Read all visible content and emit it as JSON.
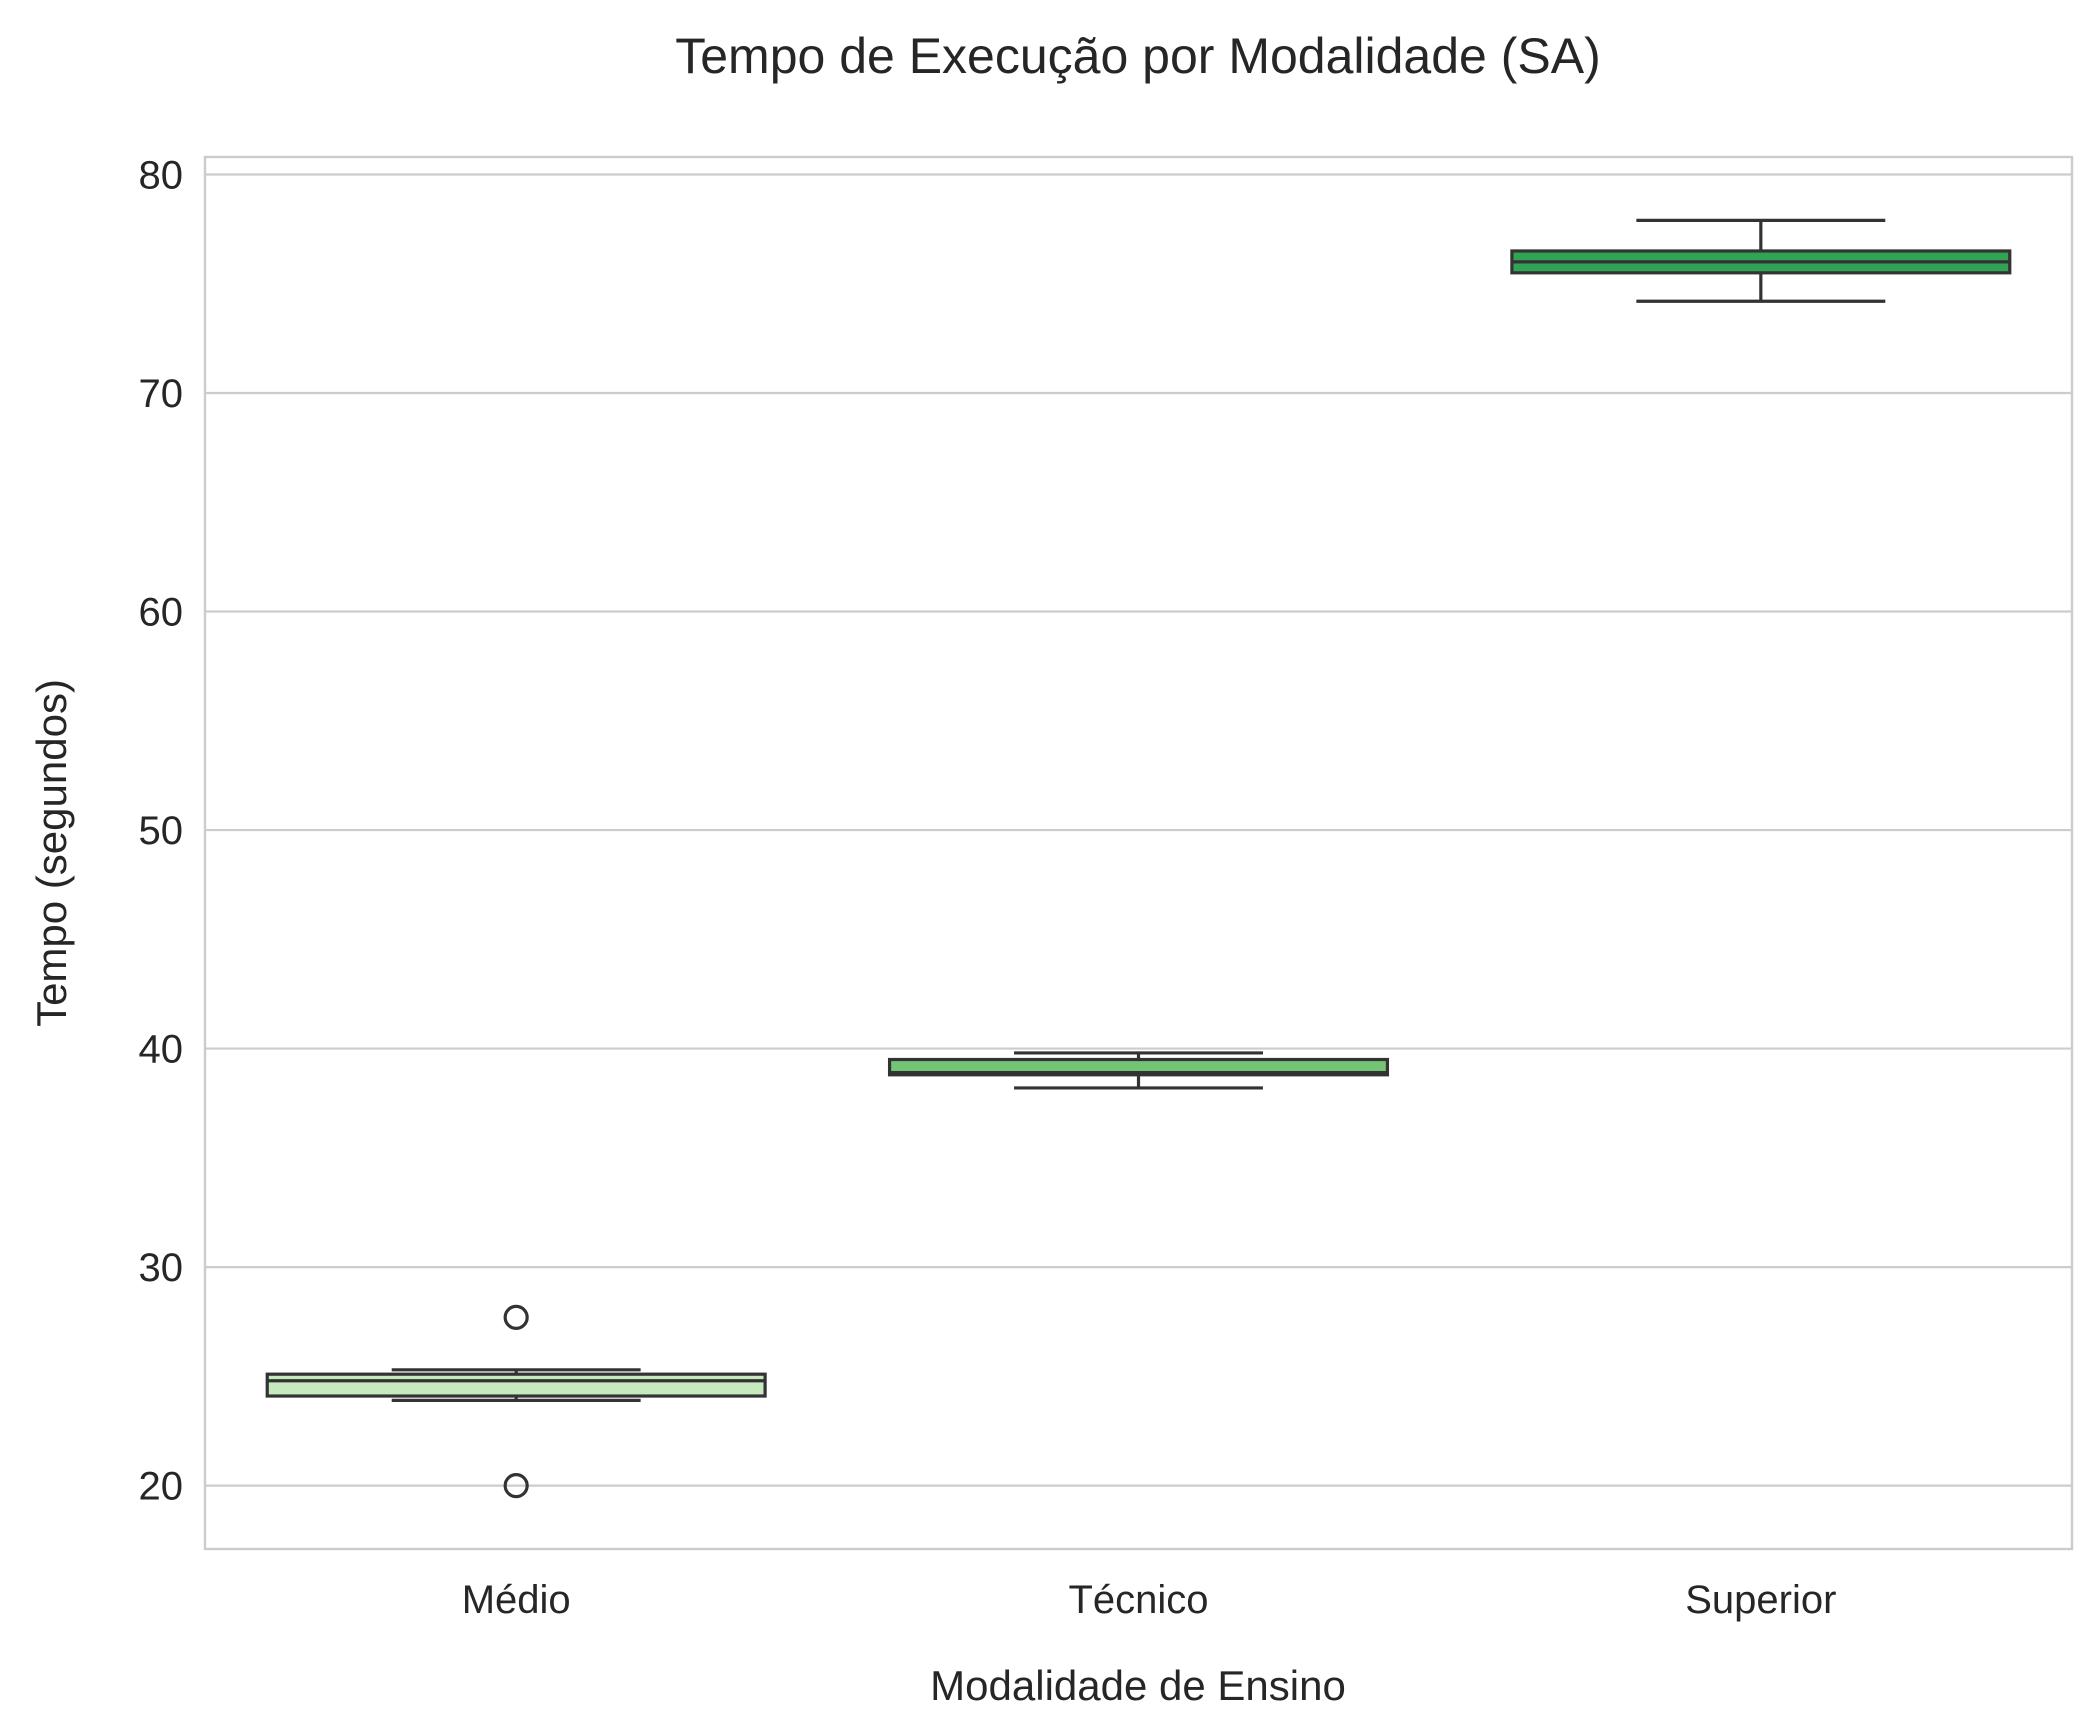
{
  "chart_data": {
    "type": "box",
    "title": "Tempo de Execução por Modalidade (SA)",
    "xlabel": "Modalidade de Ensino",
    "ylabel": "Tempo (segundos)",
    "ylim": [
      17.1,
      80.8
    ],
    "yticks": [
      20,
      30,
      40,
      50,
      60,
      70,
      80
    ],
    "grid": "horizontal",
    "categories": [
      "Médio",
      "Técnico",
      "Superior"
    ],
    "boxes": [
      {
        "category": "Médio",
        "whisker_low": 23.9,
        "q1": 24.1,
        "median": 24.8,
        "q3": 25.1,
        "whisker_high": 25.3,
        "outliers": [
          27.7,
          20.0
        ],
        "color": "#c7e9c0"
      },
      {
        "category": "Técnico",
        "whisker_low": 38.2,
        "q1": 38.8,
        "median": 38.9,
        "q3": 39.5,
        "whisker_high": 39.8,
        "outliers": [],
        "color": "#74c476"
      },
      {
        "category": "Superior",
        "whisker_low": 74.2,
        "q1": 75.5,
        "median": 76.0,
        "q3": 76.5,
        "whisker_high": 77.9,
        "outliers": [],
        "color": "#31a354"
      }
    ]
  }
}
